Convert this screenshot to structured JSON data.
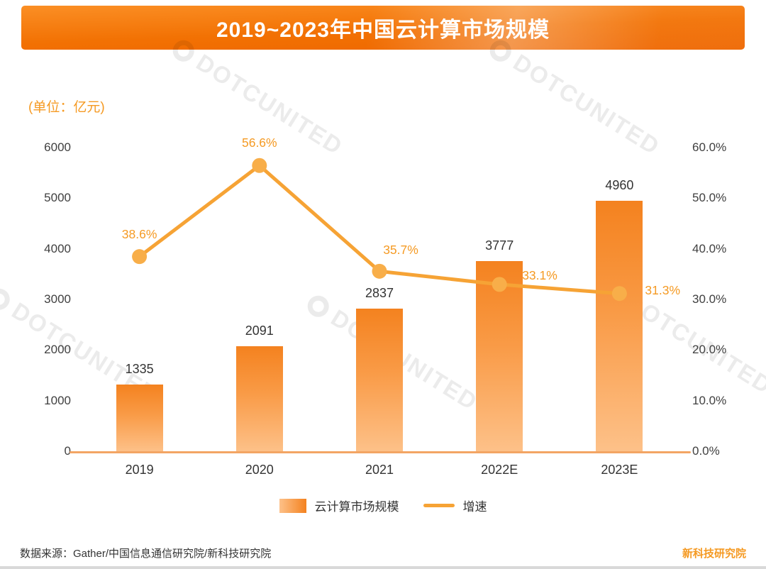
{
  "title": "2019~2023年中国云计算市场规模",
  "unit_label": "(单位：亿元)",
  "watermark": {
    "text": "DOTCUNITED"
  },
  "chart_data": {
    "type": "bar+line",
    "title": "2019~2023年中国云计算市场规模",
    "categories": [
      "2019",
      "2020",
      "2021",
      "2022E",
      "2023E"
    ],
    "series": [
      {
        "name": "云计算市场规模",
        "type": "bar",
        "axis": "left",
        "values": [
          1335,
          2091,
          2837,
          3777,
          4960
        ]
      },
      {
        "name": "增速",
        "type": "line",
        "axis": "right",
        "values": [
          38.6,
          56.6,
          35.7,
          33.1,
          31.3
        ],
        "labels": [
          "38.6%",
          "56.6%",
          "35.7%",
          "33.1%",
          "31.3%"
        ]
      }
    ],
    "left_axis": {
      "min": 0,
      "max": 6000,
      "ticks": [
        0,
        1000,
        2000,
        3000,
        4000,
        5000,
        6000
      ]
    },
    "right_axis": {
      "min": 0,
      "max": 60,
      "ticks": [
        "0.0%",
        "10.0%",
        "20.0%",
        "30.0%",
        "40.0%",
        "50.0%",
        "60.0%"
      ]
    },
    "legend": [
      "云计算市场规模",
      "增速"
    ],
    "grid": "off",
    "legend_position": "bottom",
    "colors": {
      "bar_top": "#f4821f",
      "bar_bottom": "#fdc189",
      "line": "#f6a335",
      "marker": "#f8ae49",
      "percent_label": "#f59a23",
      "value_label": "#333333",
      "axis_line": "#f3a564",
      "banner": "#f27103"
    }
  },
  "footer": {
    "source": "数据来源：Gather/中国信息通信研究院/新科技研究院",
    "brand": "新科技研究院"
  }
}
